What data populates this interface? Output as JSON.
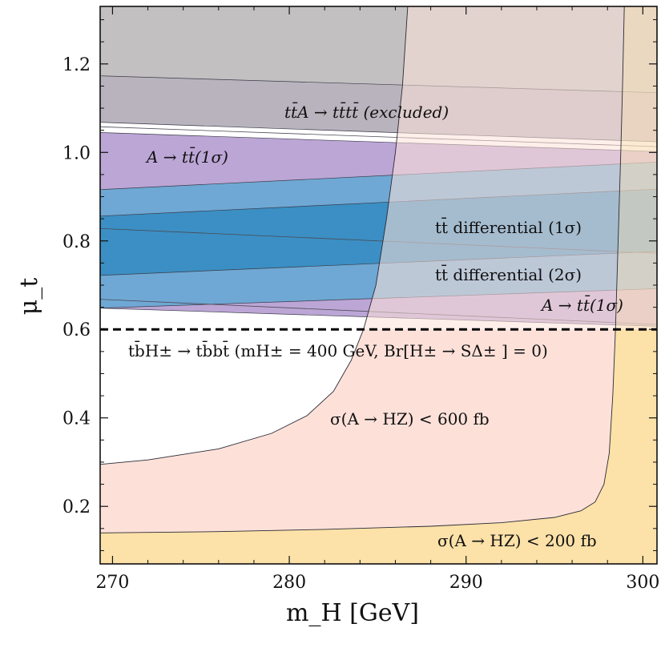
{
  "chart_data": {
    "type": "area",
    "title": "",
    "xlabel": "m_H [GeV]",
    "ylabel": "μ_t",
    "xlim": [
      269.3,
      300.8
    ],
    "ylim": [
      0.07,
      1.33
    ],
    "x_ticks": [
      "270",
      "280",
      "290",
      "300"
    ],
    "x_tick_values": [
      270,
      280,
      290,
      300
    ],
    "y_ticks": [
      "0.2",
      "0.4",
      "0.6",
      "0.8",
      "1.0",
      "1.2"
    ],
    "y_tick_values": [
      0.2,
      0.4,
      0.6,
      0.8,
      1.0,
      1.2
    ],
    "grid": false,
    "regions": [
      {
        "name": "A → tt̄ (1σ)",
        "color": "#bca6d6",
        "lower": [
          [
            269.3,
            0.648
          ],
          [
            300.8,
            0.607
          ]
        ],
        "upper": [
          [
            269.3,
            1.045
          ],
          [
            300.8,
            1.002
          ]
        ]
      },
      {
        "name": "tt̄ differential (2σ)",
        "color": "#6fa8d4",
        "lower": [
          [
            269.3,
            0.648
          ],
          [
            300.8,
            0.692
          ]
        ],
        "upper": [
          [
            269.3,
            0.916
          ],
          [
            300.8,
            0.978
          ]
        ]
      },
      {
        "name": "tt̄ differential (1σ)",
        "color": "#3b8fc4",
        "lower": [
          [
            269.3,
            0.722
          ],
          [
            300.8,
            0.776
          ]
        ],
        "upper": [
          [
            269.3,
            0.856
          ],
          [
            300.8,
            0.917
          ]
        ]
      },
      {
        "name": "tt̄A → tt̄tt̄ (excluded)",
        "color": "#b8b3bd",
        "lower": [
          [
            269.3,
            1.068
          ],
          [
            300.8,
            1.024
          ]
        ],
        "upper": [
          [
            269.3,
            1.33
          ],
          [
            300.8,
            1.33
          ]
        ]
      },
      {
        "name": "tt̄A → tt̄tt̄ (excluded)",
        "color": "#c2c0c0",
        "lower": [
          [
            269.3,
            1.173
          ],
          [
            300.8,
            1.135
          ]
        ],
        "upper": [
          [
            269.3,
            1.33
          ],
          [
            300.8,
            1.33
          ]
        ]
      }
    ],
    "lines": [
      {
        "name": "",
        "color": "#4a4a55",
        "points": [
          [
            269.3,
            1.058
          ],
          [
            300.8,
            1.013
          ]
        ]
      },
      {
        "name": "",
        "color": "#4a4a55",
        "points": [
          [
            269.3,
            0.828
          ],
          [
            300.8,
            0.772
          ]
        ]
      },
      {
        "name": "",
        "color": "#4a4a55",
        "points": [
          [
            269.3,
            0.668
          ],
          [
            300.8,
            0.611
          ]
        ]
      }
    ],
    "contours": [
      {
        "name": "σ(A → HZ) < 600 fb",
        "color": "#fde1d9",
        "curve": [
          [
            269.3,
            0.295
          ],
          [
            272,
            0.305
          ],
          [
            276,
            0.33
          ],
          [
            279,
            0.365
          ],
          [
            281,
            0.405
          ],
          [
            282.5,
            0.46
          ],
          [
            283.5,
            0.53
          ],
          [
            284.2,
            0.6
          ],
          [
            284.9,
            0.7
          ],
          [
            285.5,
            0.85
          ],
          [
            286.0,
            1.0
          ],
          [
            286.4,
            1.15
          ],
          [
            286.7,
            1.33
          ]
        ]
      },
      {
        "name": "σ(A → HZ) < 200 fb",
        "color": "#fce1a8",
        "curve": [
          [
            269.3,
            0.14
          ],
          [
            276,
            0.143
          ],
          [
            282,
            0.148
          ],
          [
            288,
            0.155
          ],
          [
            292,
            0.163
          ],
          [
            295,
            0.175
          ],
          [
            296.5,
            0.19
          ],
          [
            297.3,
            0.21
          ],
          [
            297.8,
            0.25
          ],
          [
            298.1,
            0.32
          ],
          [
            298.3,
            0.45
          ],
          [
            298.45,
            0.6
          ],
          [
            298.6,
            0.8
          ],
          [
            298.75,
            1.0
          ],
          [
            298.85,
            1.15
          ],
          [
            298.95,
            1.33
          ]
        ]
      }
    ],
    "dashed_line": {
      "y": 0.6,
      "color": "#000000"
    },
    "annotations": [
      "tt̄A → tt̄tt̄ (excluded)",
      "A → tt̄(1σ)",
      "tt̄ differential (1σ)",
      "tt̄ differential (2σ)",
      "A → tt̄(1σ)",
      "tb̄H± → tb̄bt̄ (mH± = 400 GeV, Br[H± → SΔ± ] = 0)",
      "σ(A → HZ) < 600 fb",
      "σ(A → HZ) < 200 fb"
    ]
  }
}
